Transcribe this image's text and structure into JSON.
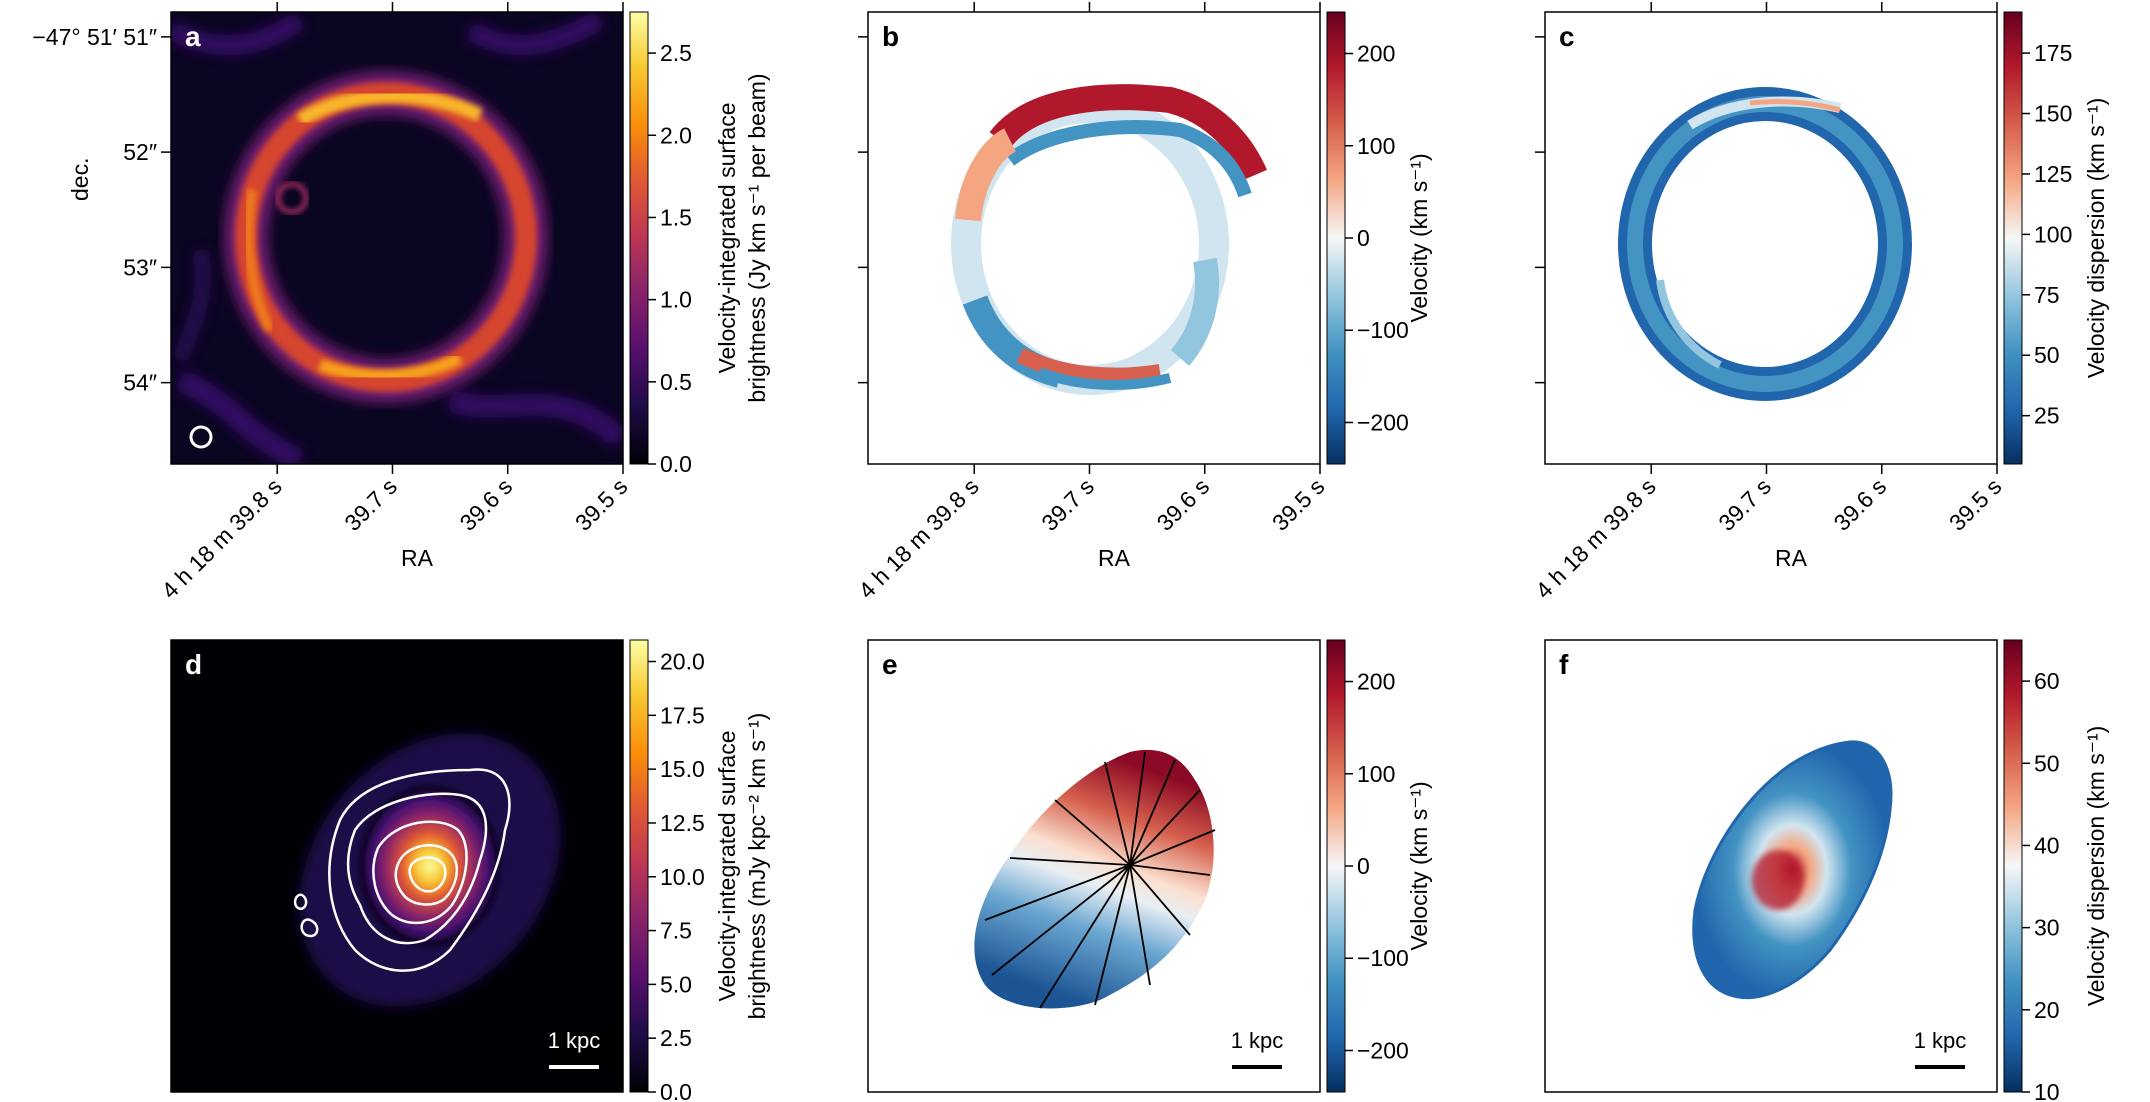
{
  "figure": {
    "panel_letters": [
      "a",
      "b",
      "c",
      "d",
      "e",
      "f"
    ],
    "scale_bar_label": "1 kpc"
  },
  "chart_data": [
    {
      "panel": "a",
      "type": "heatmap",
      "colormap": "inferno",
      "colorbar_label_lines": [
        "Velocity-integrated surface",
        "brightness (Jy km s⁻¹ per beam)"
      ],
      "colorbar_ticks": [
        "0.0",
        "0.5",
        "1.0",
        "1.5",
        "2.0",
        "2.5"
      ],
      "colorbar_range": [
        0.0,
        2.75
      ],
      "xlabel": "RA",
      "ylabel": "dec.",
      "x_ticks": [
        "4 h 18 m 39.8 s",
        "39.7 s",
        "39.6 s",
        "39.5 s"
      ],
      "y_ticks": [
        "−47° 51′ 51″",
        "52″",
        "53″",
        "54″"
      ],
      "morphology": "Einstein ring"
    },
    {
      "panel": "b",
      "type": "heatmap",
      "colormap": "RdBu_r",
      "colorbar_label": "Velocity (km s⁻¹)",
      "colorbar_ticks": [
        "−200",
        "−100",
        "0",
        "100",
        "200"
      ],
      "colorbar_range": [
        -245,
        245
      ],
      "xlabel": "RA",
      "x_ticks": [
        "4 h 18 m 39.8 s",
        "39.7 s",
        "39.6 s",
        "39.5 s"
      ],
      "morphology": "Einstein ring"
    },
    {
      "panel": "c",
      "type": "heatmap",
      "colormap": "RdBu_r",
      "colorbar_label": "Velocity dispersion (km s⁻¹)",
      "colorbar_ticks": [
        "25",
        "50",
        "75",
        "100",
        "125",
        "150",
        "175"
      ],
      "colorbar_range": [
        5,
        192
      ],
      "xlabel": "RA",
      "x_ticks": [
        "4 h 18 m 39.8 s",
        "39.7 s",
        "39.6 s",
        "39.5 s"
      ],
      "morphology": "Einstein ring"
    },
    {
      "panel": "d",
      "type": "heatmap",
      "colormap": "inferno",
      "colorbar_label_lines": [
        "Velocity-integrated surface",
        "brightness (mJy kpc⁻² km s⁻¹)"
      ],
      "colorbar_ticks": [
        "0.0",
        "2.5",
        "5.0",
        "7.5",
        "10.0",
        "12.5",
        "15.0",
        "17.5",
        "20.0"
      ],
      "colorbar_range": [
        0.0,
        21.0
      ],
      "morphology": "reconstructed source-plane galaxy with contours"
    },
    {
      "panel": "e",
      "type": "heatmap",
      "colormap": "RdBu_r",
      "colorbar_label": "Velocity (km s⁻¹)",
      "colorbar_ticks": [
        "−200",
        "−100",
        "0",
        "100",
        "200"
      ],
      "colorbar_range": [
        -245,
        245
      ],
      "morphology": "reconstructed source-plane galaxy with isovelocity contours"
    },
    {
      "panel": "f",
      "type": "heatmap",
      "colormap": "RdBu_r",
      "colorbar_label": "Velocity dispersion (km s⁻¹)",
      "colorbar_ticks": [
        "10",
        "20",
        "30",
        "40",
        "50",
        "60"
      ],
      "colorbar_range": [
        10,
        65
      ],
      "morphology": "reconstructed source-plane galaxy"
    }
  ]
}
